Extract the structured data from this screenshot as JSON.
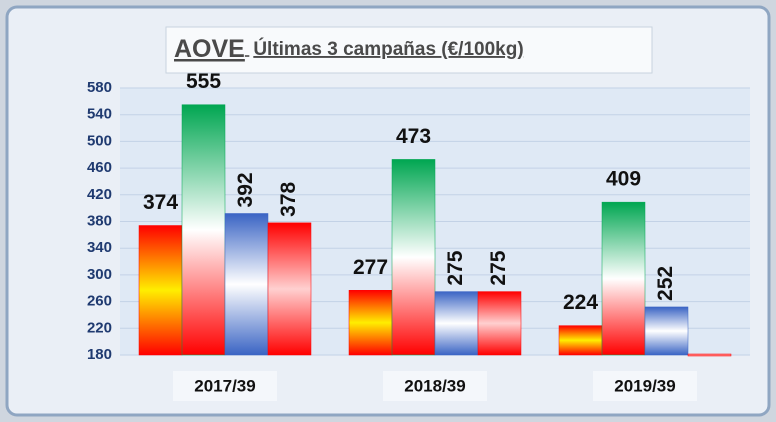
{
  "chart_data": {
    "type": "bar",
    "title": "AOVE",
    "subtitle": "Últimas 3 campañas  (€/100kg)",
    "categories": [
      "2017/39",
      "2018/39",
      "2019/39"
    ],
    "series": [
      {
        "color": "#ff0000",
        "gradient": [
          "#ff0000",
          "#ffee00",
          "#ff0000"
        ],
        "values": [
          374,
          277,
          224
        ]
      },
      {
        "color": "#00a651",
        "gradient": [
          "#00a651",
          "#ffffff",
          "#ff0000"
        ],
        "values": [
          555,
          473,
          409
        ]
      },
      {
        "color": "#3a64c4",
        "gradient": [
          "#3a64c4",
          "#ffffff",
          "#3a64c4"
        ],
        "values": [
          392,
          275,
          252
        ]
      },
      {
        "color": "#ff0000",
        "gradient": [
          "#ff0000",
          "#ffd0d0",
          "#ff0000"
        ],
        "values": [
          378,
          275,
          180
        ],
        "value_labels": [
          "378",
          "275",
          null
        ]
      }
    ],
    "ylim": [
      180,
      580
    ],
    "yticks": [
      180,
      220,
      260,
      300,
      340,
      380,
      420,
      460,
      500,
      540,
      580
    ],
    "grid": true
  }
}
